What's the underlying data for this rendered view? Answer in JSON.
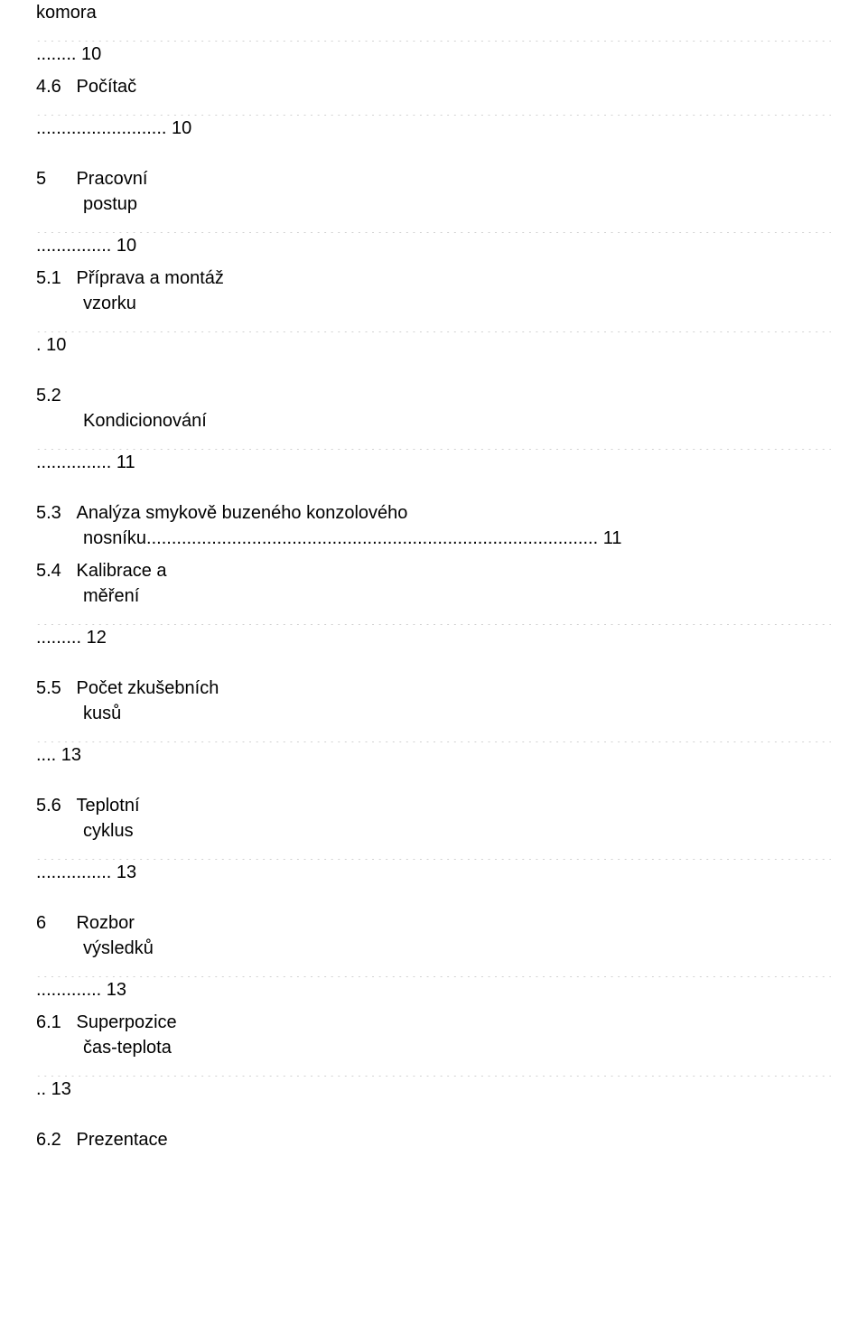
{
  "dots_full": "................................................................................................................................................................................................................................................",
  "entries": [
    {
      "num": "",
      "title": "komora",
      "page_prefix": "........ ",
      "page": "10",
      "indent": false
    },
    {
      "num": "4.6",
      "title": "Počítač",
      "page_prefix": ".......................... ",
      "page": "10",
      "indent": true,
      "gap_after": true
    },
    {
      "num": "5",
      "title": "Pracovní",
      "subtitle": "postup",
      "page_prefix": "............... ",
      "page": "10",
      "indent": false,
      "num_gap": true
    },
    {
      "num": "5.1",
      "title": "Příprava a montáž",
      "subtitle": "vzorku",
      "page_prefix": ". ",
      "page": "10",
      "indent": true,
      "gap_after": true
    },
    {
      "num": "5.2",
      "title": "",
      "subtitle": "Kondicionování",
      "page_prefix": "............... ",
      "page": "11",
      "indent": true,
      "gap_after": true
    },
    {
      "num": "5.3",
      "title": "Analýza smykově buzeného konzolového",
      "subtitle": "nosníku",
      "sub_dots": ".......................................................................................... ",
      "page": "11",
      "indent": true,
      "inline_sub": true
    },
    {
      "num": "5.4",
      "title": "Kalibrace a",
      "subtitle": "měření",
      "page_prefix": "......... ",
      "page": "12",
      "indent": true,
      "gap_after": true
    },
    {
      "num": "5.5",
      "title": "Počet zkušebních",
      "subtitle": "kusů",
      "page_prefix": ".... ",
      "page": "13",
      "indent": true,
      "gap_after": true
    },
    {
      "num": "5.6",
      "title": "Teplotní",
      "subtitle": "cyklus",
      "page_prefix": "............... ",
      "page": "13",
      "indent": true,
      "gap_after": true
    },
    {
      "num": "6",
      "title": "Rozbor",
      "subtitle": "výsledků",
      "page_prefix": "............. ",
      "page": "13",
      "indent": false,
      "num_gap": true
    },
    {
      "num": "6.1",
      "title": "Superpozice",
      "subtitle": "čas-teplota",
      "page_prefix": ".. ",
      "page": "13",
      "indent": true,
      "gap_after": true
    },
    {
      "num": "6.2",
      "title": "Prezentace",
      "indent": true,
      "no_page": true
    }
  ]
}
